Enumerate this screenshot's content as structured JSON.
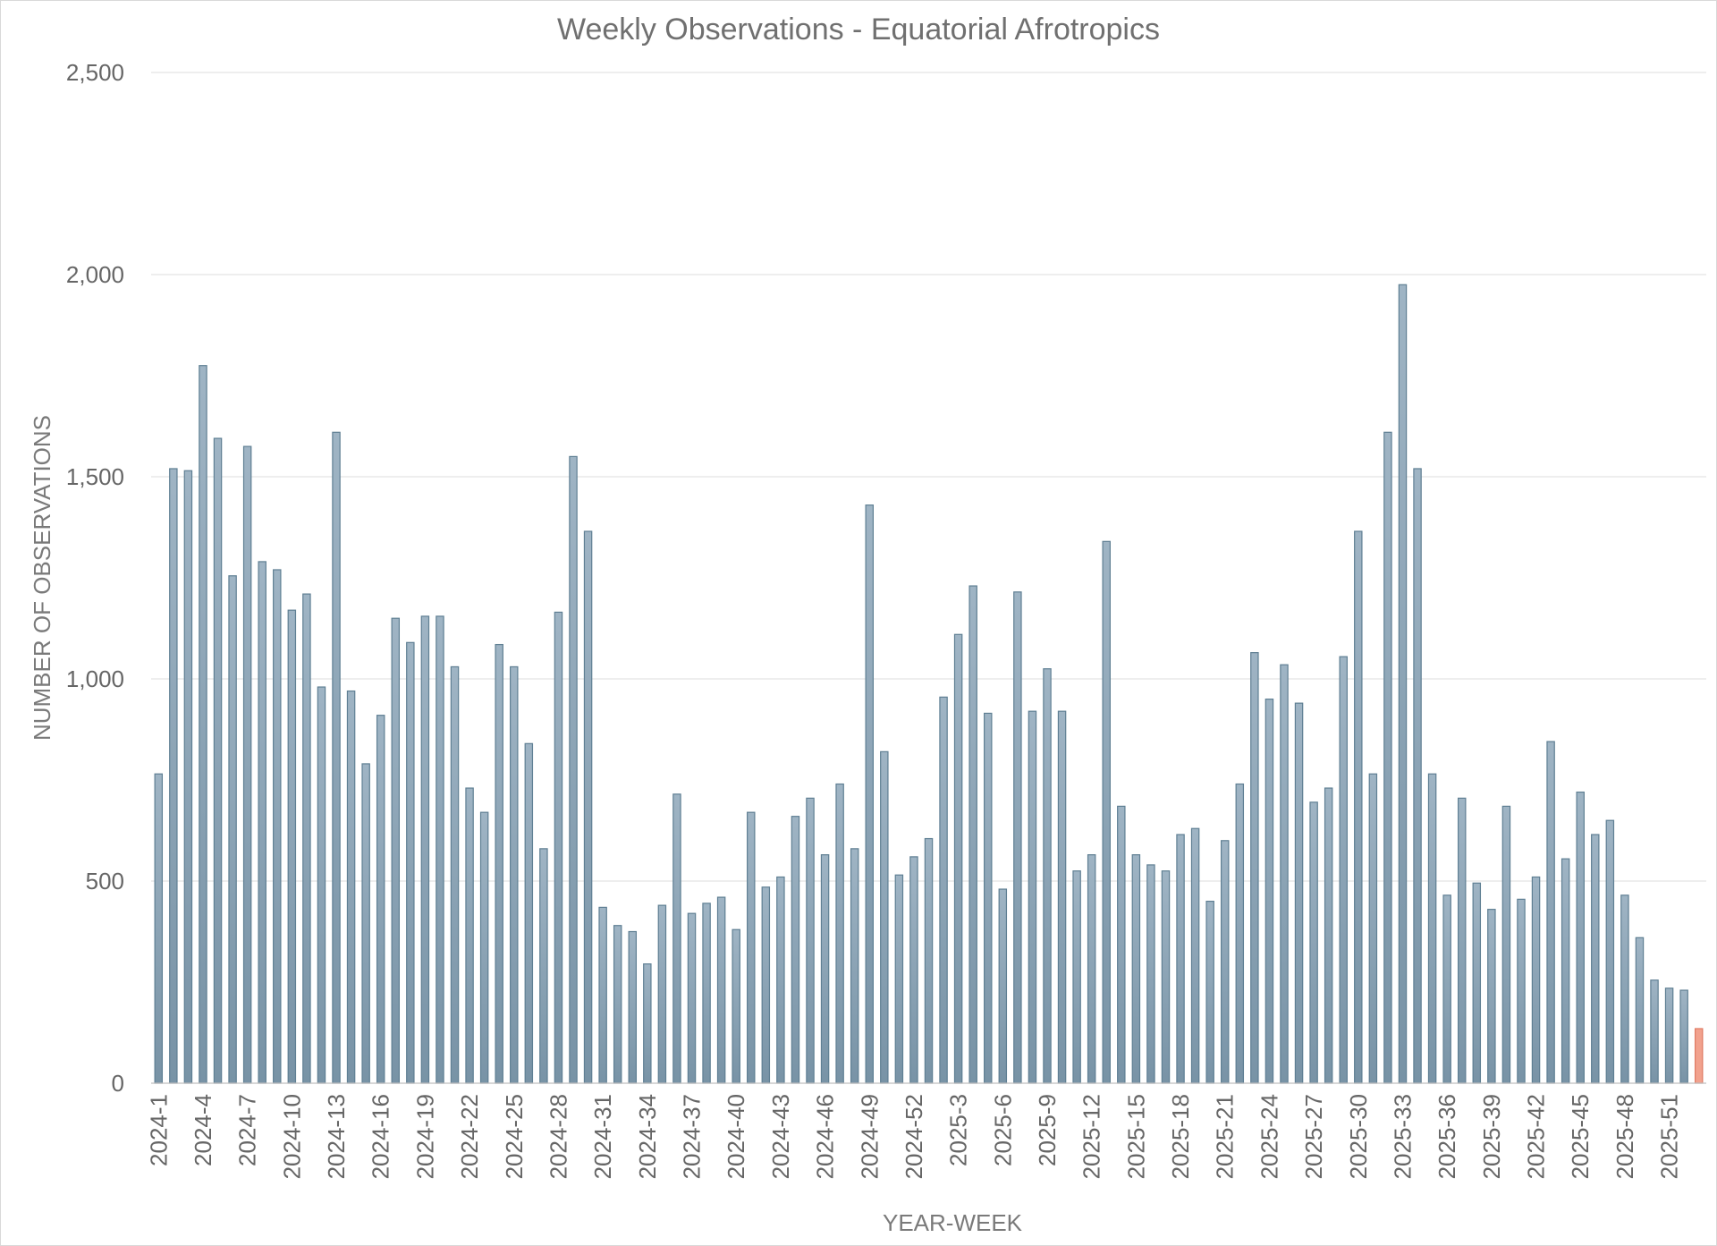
{
  "chart_data": {
    "type": "bar",
    "title": "Weekly Observations - Equatorial Afrotropics",
    "xlabel": "YEAR-WEEK",
    "ylabel": "NUMBER OF OBSERVATIONS",
    "ylim": [
      0,
      2500
    ],
    "yticks": [
      0,
      500,
      1000,
      1500,
      2000,
      2500
    ],
    "ytick_labels": [
      "0",
      "500",
      "1,000",
      "1,500",
      "2,000",
      "2,500"
    ],
    "grid": true,
    "legend": "none",
    "colors": {
      "bar": "#8ca4b6",
      "bar_edge": "#5f7f93",
      "highlight": "#f2a28e",
      "highlight_edge": "#e07b64"
    },
    "highlight_last": true,
    "categories": [
      "2024-1",
      "2024-2",
      "2024-3",
      "2024-4",
      "2024-5",
      "2024-6",
      "2024-7",
      "2024-8",
      "2024-9",
      "2024-10",
      "2024-11",
      "2024-12",
      "2024-13",
      "2024-14",
      "2024-15",
      "2024-16",
      "2024-17",
      "2024-18",
      "2024-19",
      "2024-20",
      "2024-21",
      "2024-22",
      "2024-23",
      "2024-24",
      "2024-25",
      "2024-26",
      "2024-27",
      "2024-28",
      "2024-29",
      "2024-30",
      "2024-31",
      "2024-32",
      "2024-33",
      "2024-34",
      "2024-35",
      "2024-36",
      "2024-37",
      "2024-38",
      "2024-39",
      "2024-40",
      "2024-41",
      "2024-42",
      "2024-43",
      "2024-44",
      "2024-45",
      "2024-46",
      "2024-47",
      "2024-48",
      "2024-49",
      "2024-50",
      "2024-51",
      "2024-52",
      "2025-1",
      "2025-2",
      "2025-3",
      "2025-4",
      "2025-5",
      "2025-6",
      "2025-7",
      "2025-8",
      "2025-9",
      "2025-10",
      "2025-11",
      "2025-12",
      "2025-13",
      "2025-14",
      "2025-15",
      "2025-16",
      "2025-17",
      "2025-18",
      "2025-19",
      "2025-20",
      "2025-21",
      "2025-22",
      "2025-23",
      "2025-24",
      "2025-25",
      "2025-26",
      "2025-27",
      "2025-28",
      "2025-29",
      "2025-30",
      "2025-31",
      "2025-32",
      "2025-33",
      "2025-34",
      "2025-35",
      "2025-36",
      "2025-37",
      "2025-38",
      "2025-39",
      "2025-40",
      "2025-41",
      "2025-42",
      "2025-43",
      "2025-44",
      "2025-45",
      "2025-46",
      "2025-47",
      "2025-48",
      "2025-49",
      "2025-50",
      "2025-51",
      "2025-52",
      "2025-53"
    ],
    "x_tick_labels": [
      "2024-1",
      "2024-4",
      "2024-7",
      "2024-10",
      "2024-13",
      "2024-16",
      "2024-19",
      "2024-22",
      "2024-25",
      "2024-28",
      "2024-31",
      "2024-34",
      "2024-37",
      "2024-40",
      "2024-43",
      "2024-46",
      "2024-49",
      "2024-52",
      "2025-3",
      "2025-6",
      "2025-9",
      "2025-12",
      "2025-15",
      "2025-18",
      "2025-21",
      "2025-24",
      "2025-27",
      "2025-30",
      "2025-33",
      "2025-36",
      "2025-39",
      "2025-42",
      "2025-45",
      "2025-48",
      "2025-51"
    ],
    "values": [
      765,
      1520,
      1515,
      1775,
      1595,
      1255,
      1575,
      1290,
      1270,
      1170,
      1210,
      980,
      1610,
      970,
      790,
      910,
      1150,
      1090,
      1155,
      1155,
      1030,
      730,
      670,
      1085,
      1030,
      840,
      580,
      1165,
      1550,
      1365,
      435,
      390,
      375,
      295,
      440,
      715,
      420,
      445,
      460,
      380,
      670,
      485,
      510,
      660,
      705,
      565,
      740,
      580,
      1430,
      820,
      515,
      560,
      605,
      955,
      1110,
      1230,
      915,
      480,
      1215,
      920,
      1025,
      920,
      525,
      565,
      1340,
      685,
      565,
      540,
      525,
      615,
      630,
      450,
      600,
      740,
      1065,
      950,
      1035,
      940,
      695,
      730,
      1055,
      1365,
      765,
      1610,
      1975,
      1520,
      765,
      465,
      705,
      495,
      430,
      685,
      455,
      510,
      845,
      555,
      720,
      615,
      650,
      465,
      360,
      255,
      235,
      230,
      135
    ]
  }
}
